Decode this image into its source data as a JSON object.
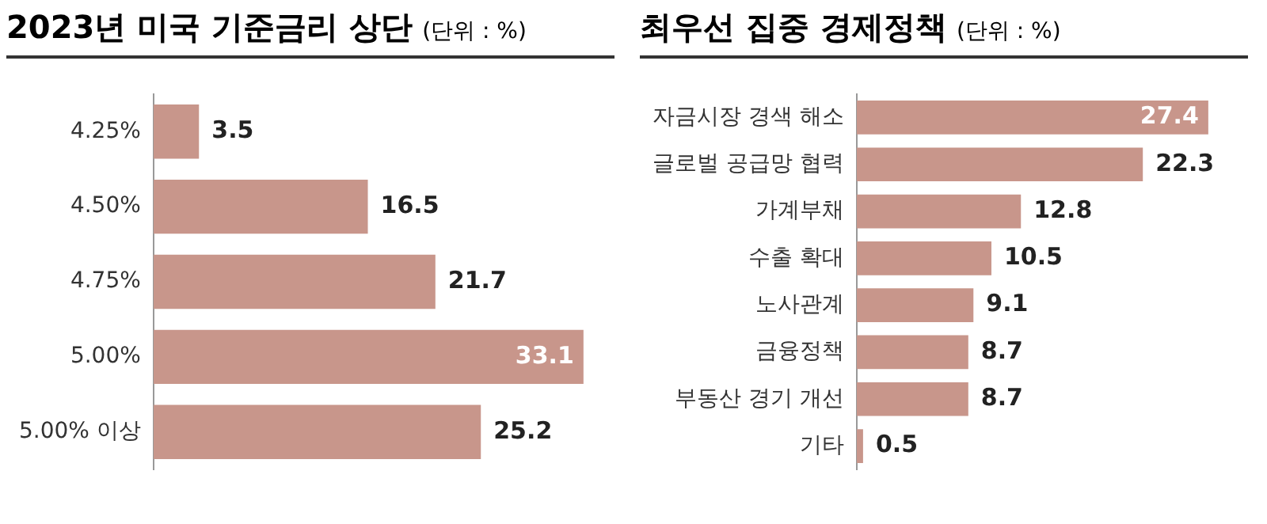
{
  "chart_data": [
    {
      "type": "bar",
      "orientation": "horizontal",
      "title": "2023년 미국 기준금리 상단",
      "subtitle": "(단위 : %)",
      "categories": [
        "4.25%",
        "4.50%",
        "4.75%",
        "5.00%",
        "5.00% 이상"
      ],
      "values": [
        3.5,
        16.5,
        21.7,
        33.1,
        25.2
      ],
      "color": "#c8968b",
      "data_labels": true,
      "grid": false,
      "legend": false,
      "tick_labels": "y"
    },
    {
      "type": "bar",
      "orientation": "horizontal",
      "title": "최우선 집중 경제정책",
      "subtitle": "(단위 : %)",
      "categories": [
        "자금시장 경색 해소",
        "글로벌 공급망 협력",
        "가계부채",
        "수출 확대",
        "노사관계",
        "금융정책",
        "부동산 경기 개선",
        "기타"
      ],
      "values": [
        27.4,
        22.3,
        12.8,
        10.5,
        9.1,
        8.7,
        8.7,
        0.5
      ],
      "color": "#c8968b",
      "data_labels": true,
      "grid": false,
      "legend": false,
      "tick_labels": "y"
    }
  ]
}
